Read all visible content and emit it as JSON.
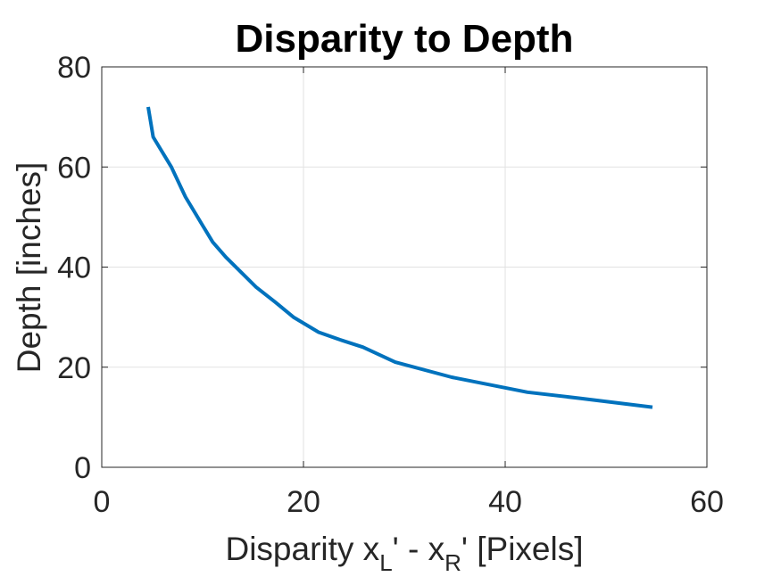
{
  "chart_data": {
    "type": "line",
    "title": "Disparity to Depth",
    "xlabel": {
      "prefix": "Disparity x",
      "sub1": "L",
      "mid": "' - x",
      "sub2": "R",
      "suffix": "' [Pixels]"
    },
    "ylabel": "Depth [inches]",
    "xlim": [
      0,
      60
    ],
    "ylim": [
      0,
      80
    ],
    "xticks": [
      0,
      20,
      40,
      60
    ],
    "yticks": [
      0,
      20,
      40,
      60,
      80
    ],
    "grid": true,
    "series": [
      {
        "color": "#0072BD",
        "x": [
          4.6,
          5.1,
          6.9,
          8.3,
          10.1,
          11.0,
          12.3,
          13.8,
          15.3,
          17.2,
          19.0,
          21.5,
          23.6,
          25.9,
          29.1,
          34.7,
          42.2,
          47.3,
          54.6
        ],
        "y": [
          72,
          66,
          60,
          54,
          48,
          45,
          42,
          39,
          36,
          33,
          30,
          27,
          25.5,
          24,
          21,
          18,
          15,
          13.8,
          12
        ]
      }
    ]
  }
}
